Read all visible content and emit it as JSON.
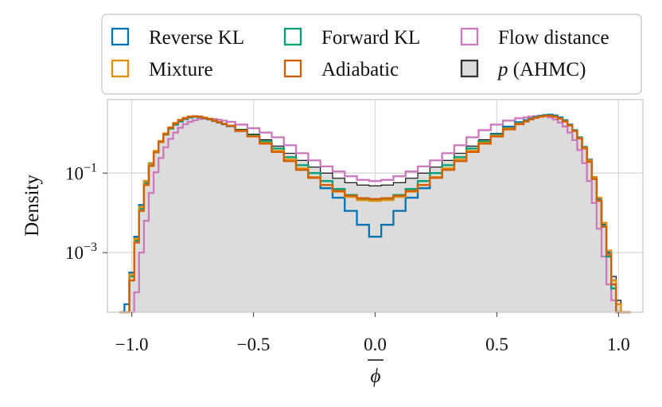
{
  "chart_data": {
    "type": "histogram-step",
    "xlabel": "φ̄",
    "ylabel": "Density",
    "yscale": "log",
    "xlim": [
      -1.1,
      1.1
    ],
    "ylim_log10": [
      -4.5,
      0.85
    ],
    "x_ticks": [
      {
        "value": -1.0,
        "label": "−1.0"
      },
      {
        "value": -0.5,
        "label": "−0.5"
      },
      {
        "value": 0.0,
        "label": "0.0"
      },
      {
        "value": 0.5,
        "label": "0.5"
      },
      {
        "value": 1.0,
        "label": "1.0"
      }
    ],
    "y_ticks": [
      {
        "log10": -1,
        "base": "10",
        "exp": "−1"
      },
      {
        "log10": -3,
        "base": "10",
        "exp": "−3"
      }
    ],
    "grid": true,
    "legend_position": "top",
    "x": [
      -1.04,
      -1.02,
      -1.0,
      -0.98,
      -0.96,
      -0.94,
      -0.92,
      -0.9,
      -0.88,
      -0.86,
      -0.84,
      -0.82,
      -0.8,
      -0.78,
      -0.76,
      -0.74,
      -0.72,
      -0.7,
      -0.68,
      -0.66,
      -0.64,
      -0.62,
      -0.6,
      -0.55,
      -0.5,
      -0.45,
      -0.4,
      -0.35,
      -0.3,
      -0.25,
      -0.2,
      -0.15,
      -0.1,
      -0.05,
      0.0,
      0.05,
      0.1,
      0.15,
      0.2,
      0.25,
      0.3,
      0.35,
      0.4,
      0.45,
      0.5,
      0.55,
      0.6,
      0.62,
      0.64,
      0.66,
      0.68,
      0.7,
      0.72,
      0.74,
      0.76,
      0.78,
      0.8,
      0.82,
      0.84,
      0.86,
      0.88,
      0.9,
      0.92,
      0.94,
      0.96,
      0.98,
      1.0,
      1.02,
      1.04
    ],
    "series": [
      {
        "name": "Reverse KL",
        "color": "#0173b2",
        "kind": "step",
        "values": [
          -4.5,
          -4.3,
          -3.5,
          -2.6,
          -1.8,
          -1.2,
          -0.75,
          -0.45,
          -0.2,
          -0.02,
          0.12,
          0.22,
          0.3,
          0.36,
          0.4,
          0.42,
          0.41,
          0.38,
          0.35,
          0.31,
          0.27,
          0.23,
          0.18,
          0.06,
          -0.08,
          -0.25,
          -0.45,
          -0.68,
          -0.9,
          -1.12,
          -1.38,
          -1.62,
          -1.95,
          -2.3,
          -2.6,
          -2.3,
          -1.95,
          -1.62,
          -1.38,
          -1.12,
          -0.9,
          -0.68,
          -0.45,
          -0.22,
          -0.02,
          0.17,
          0.28,
          0.33,
          0.37,
          0.41,
          0.44,
          0.46,
          0.47,
          0.45,
          0.4,
          0.33,
          0.22,
          0.08,
          -0.1,
          -0.34,
          -0.66,
          -1.1,
          -1.65,
          -2.3,
          -3.0,
          -3.8,
          -4.5,
          -4.5,
          -4.5
        ]
      },
      {
        "name": "Forward KL",
        "color": "#029e73",
        "kind": "step",
        "values": [
          -4.5,
          -4.5,
          -3.6,
          -2.7,
          -1.9,
          -1.25,
          -0.8,
          -0.48,
          -0.22,
          -0.03,
          0.12,
          0.23,
          0.31,
          0.37,
          0.41,
          0.42,
          0.41,
          0.39,
          0.36,
          0.32,
          0.28,
          0.24,
          0.19,
          0.07,
          -0.05,
          -0.2,
          -0.38,
          -0.6,
          -0.8,
          -1.0,
          -1.2,
          -1.4,
          -1.55,
          -1.65,
          -1.68,
          -1.65,
          -1.55,
          -1.4,
          -1.2,
          -1.0,
          -0.8,
          -0.6,
          -0.38,
          -0.2,
          -0.04,
          0.13,
          0.25,
          0.31,
          0.36,
          0.4,
          0.43,
          0.45,
          0.45,
          0.43,
          0.38,
          0.31,
          0.2,
          0.07,
          -0.12,
          -0.36,
          -0.68,
          -1.12,
          -1.7,
          -2.35,
          -3.1,
          -3.9,
          -4.5,
          -4.5,
          -4.5
        ]
      },
      {
        "name": "Flow distance",
        "color": "#cc78bc",
        "kind": "step",
        "values": [
          -4.5,
          -4.5,
          -4.5,
          -4.0,
          -3.0,
          -2.2,
          -1.5,
          -0.98,
          -0.62,
          -0.35,
          -0.14,
          0.02,
          0.14,
          0.23,
          0.29,
          0.33,
          0.36,
          0.37,
          0.37,
          0.36,
          0.34,
          0.32,
          0.29,
          0.22,
          0.13,
          0.02,
          -0.1,
          -0.3,
          -0.5,
          -0.68,
          -0.83,
          -0.96,
          -1.08,
          -1.17,
          -1.2,
          -1.17,
          -1.08,
          -0.96,
          -0.83,
          -0.68,
          -0.5,
          -0.3,
          -0.1,
          0.08,
          0.22,
          0.32,
          0.38,
          0.4,
          0.42,
          0.43,
          0.44,
          0.43,
          0.4,
          0.35,
          0.27,
          0.17,
          0.02,
          -0.17,
          -0.42,
          -0.75,
          -1.2,
          -1.75,
          -2.4,
          -3.1,
          -3.8,
          -4.2,
          -4.5,
          -4.5,
          -4.5
        ]
      },
      {
        "name": "Mixture",
        "color": "#de8f05",
        "kind": "step",
        "values": [
          -4.5,
          -4.5,
          -3.55,
          -2.65,
          -1.85,
          -1.2,
          -0.76,
          -0.44,
          -0.19,
          0.0,
          0.15,
          0.26,
          0.34,
          0.39,
          0.42,
          0.43,
          0.42,
          0.39,
          0.36,
          0.32,
          0.28,
          0.24,
          0.19,
          0.07,
          -0.07,
          -0.24,
          -0.44,
          -0.66,
          -0.88,
          -1.1,
          -1.3,
          -1.47,
          -1.6,
          -1.68,
          -1.7,
          -1.68,
          -1.6,
          -1.47,
          -1.3,
          -1.1,
          -0.88,
          -0.66,
          -0.44,
          -0.24,
          -0.06,
          0.12,
          0.24,
          0.3,
          0.35,
          0.39,
          0.42,
          0.44,
          0.44,
          0.42,
          0.37,
          0.3,
          0.2,
          0.06,
          -0.12,
          -0.36,
          -0.68,
          -1.1,
          -1.62,
          -2.25,
          -2.95,
          -3.7,
          -4.3,
          -4.5,
          -4.5
        ]
      },
      {
        "name": "Adiabatic",
        "color": "#d55e00",
        "kind": "step",
        "values": [
          -4.5,
          -4.5,
          -3.7,
          -2.75,
          -1.95,
          -1.3,
          -0.82,
          -0.48,
          -0.22,
          -0.02,
          0.14,
          0.25,
          0.33,
          0.38,
          0.42,
          0.43,
          0.42,
          0.39,
          0.36,
          0.32,
          0.28,
          0.24,
          0.19,
          0.06,
          -0.08,
          -0.26,
          -0.47,
          -0.7,
          -0.92,
          -1.12,
          -1.3,
          -1.45,
          -1.57,
          -1.63,
          -1.65,
          -1.63,
          -1.57,
          -1.45,
          -1.3,
          -1.12,
          -0.92,
          -0.7,
          -0.47,
          -0.26,
          -0.08,
          0.1,
          0.23,
          0.3,
          0.35,
          0.39,
          0.42,
          0.44,
          0.44,
          0.42,
          0.37,
          0.3,
          0.2,
          0.06,
          -0.13,
          -0.38,
          -0.72,
          -1.15,
          -1.7,
          -2.35,
          -3.05,
          -3.8,
          -4.5,
          -4.5,
          -4.5
        ]
      },
      {
        "name": "p (AHMC)",
        "color": "#000000",
        "fill": "#dcdcdc",
        "kind": "filled-step",
        "values": [
          -4.5,
          -4.5,
          -3.6,
          -2.7,
          -1.9,
          -1.25,
          -0.8,
          -0.47,
          -0.21,
          -0.01,
          0.14,
          0.25,
          0.33,
          0.38,
          0.41,
          0.42,
          0.41,
          0.39,
          0.36,
          0.32,
          0.29,
          0.25,
          0.2,
          0.1,
          -0.02,
          -0.16,
          -0.32,
          -0.5,
          -0.68,
          -0.85,
          -1.0,
          -1.13,
          -1.24,
          -1.3,
          -1.32,
          -1.3,
          -1.24,
          -1.13,
          -1.0,
          -0.85,
          -0.68,
          -0.5,
          -0.32,
          -0.16,
          0.0,
          0.16,
          0.27,
          0.32,
          0.37,
          0.41,
          0.44,
          0.46,
          0.46,
          0.44,
          0.39,
          0.32,
          0.22,
          0.08,
          -0.11,
          -0.35,
          -0.68,
          -1.1,
          -1.62,
          -2.25,
          -2.95,
          -3.6,
          -4.2,
          -4.5,
          -4.5
        ]
      }
    ],
    "legend": [
      {
        "label": "Reverse KL",
        "color": "#0173b2"
      },
      {
        "label": "Forward KL",
        "color": "#029e73"
      },
      {
        "label": "Flow distance",
        "color": "#cc78bc"
      },
      {
        "label": "Mixture",
        "color": "#de8f05"
      },
      {
        "label": "Adiabatic",
        "color": "#d55e00"
      },
      {
        "label": "p (AHMC)",
        "color": "#333333",
        "fill": "#dcdcdc",
        "italic_part": "p",
        "rest": " (AHMC)"
      }
    ]
  }
}
